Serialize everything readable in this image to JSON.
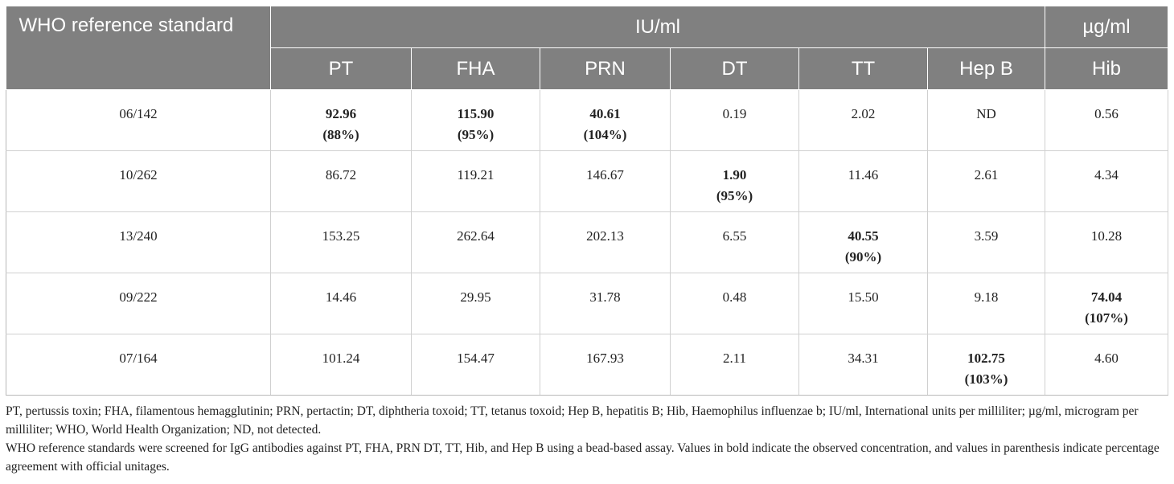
{
  "table": {
    "corner_label": "WHO reference standard",
    "group_iu": "IU/ml",
    "group_ug": "µg/ml",
    "columns": [
      "PT",
      "FHA",
      "PRN",
      "DT",
      "TT",
      "Hep B",
      "Hib"
    ],
    "rows": [
      {
        "standard": "06/142",
        "cells": [
          {
            "value": "92.96",
            "pct": "(88%)",
            "bold": true
          },
          {
            "value": "115.90",
            "pct": "(95%)",
            "bold": true
          },
          {
            "value": "40.61",
            "pct": "(104%)",
            "bold": true
          },
          {
            "value": "0.19"
          },
          {
            "value": "2.02"
          },
          {
            "value": "ND"
          },
          {
            "value": "0.56"
          }
        ]
      },
      {
        "standard": "10/262",
        "cells": [
          {
            "value": "86.72"
          },
          {
            "value": "119.21"
          },
          {
            "value": "146.67"
          },
          {
            "value": "1.90",
            "pct": "(95%)",
            "bold": true
          },
          {
            "value": "11.46"
          },
          {
            "value": "2.61"
          },
          {
            "value": "4.34"
          }
        ]
      },
      {
        "standard": "13/240",
        "cells": [
          {
            "value": "153.25"
          },
          {
            "value": "262.64"
          },
          {
            "value": "202.13"
          },
          {
            "value": "6.55"
          },
          {
            "value": "40.55",
            "pct": "(90%)",
            "bold": true
          },
          {
            "value": "3.59"
          },
          {
            "value": "10.28"
          }
        ]
      },
      {
        "standard": "09/222",
        "cells": [
          {
            "value": "14.46"
          },
          {
            "value": "29.95"
          },
          {
            "value": "31.78"
          },
          {
            "value": "0.48"
          },
          {
            "value": "15.50"
          },
          {
            "value": "9.18"
          },
          {
            "value": "74.04",
            "pct": "(107%)",
            "bold": true
          }
        ]
      },
      {
        "standard": "07/164",
        "cells": [
          {
            "value": "101.24"
          },
          {
            "value": "154.47"
          },
          {
            "value": "167.93"
          },
          {
            "value": "2.11"
          },
          {
            "value": "34.31"
          },
          {
            "value": "102.75",
            "pct": "(103%)",
            "bold": true
          },
          {
            "value": "4.60"
          }
        ]
      }
    ]
  },
  "footnotes": [
    "PT, pertussis toxin; FHA, filamentous hemagglutinin; PRN, pertactin; DT, diphtheria toxoid; TT, tetanus toxoid; Hep B, hepatitis B; Hib, Haemophilus influenzae b; IU/ml, International units per milliliter; µg/ml, microgram per milliliter; WHO, World Health Organization; ND, not detected.",
    "WHO reference standards were screened for IgG antibodies against PT, FHA, PRN DT, TT, Hib, and Hep B using a bead-based assay. Values in bold indicate the observed concentration, and values in parenthesis indicate percentage agreement with official unitages."
  ]
}
